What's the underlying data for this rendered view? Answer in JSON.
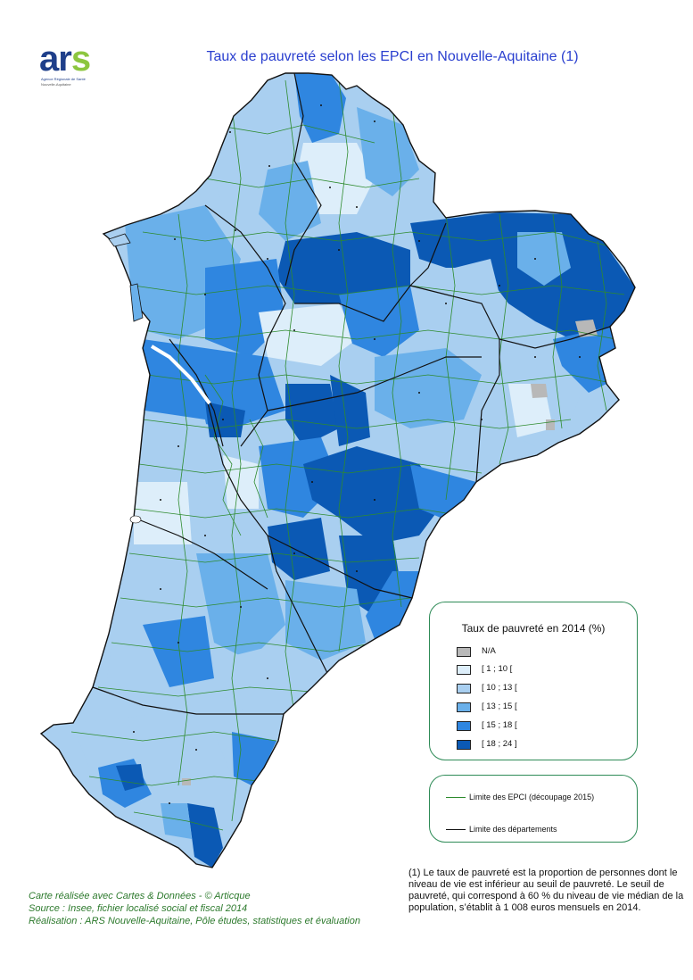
{
  "logo": {
    "letters": "ars",
    "line1": "Agence Régionale de Santé",
    "line2": "Nouvelle-Aquitaine"
  },
  "title": "Taux de pauvreté selon les EPCI en Nouvelle-Aquitaine (1)",
  "legend": {
    "title": "Taux de pauvreté en 2014 (%)",
    "items": [
      {
        "label": "N/A",
        "color": "#b8b8b8"
      },
      {
        "label": "[ 1 ; 10 [",
        "color": "#ddeefa"
      },
      {
        "label": "[ 10 ; 13 [",
        "color": "#a9cff0"
      },
      {
        "label": "[ 13 ; 15 [",
        "color": "#6ab0ea"
      },
      {
        "label": "[ 15 ; 18 [",
        "color": "#2f86e0"
      },
      {
        "label": "[ 18 ; 24 ]",
        "color": "#0b59b4"
      }
    ]
  },
  "limits": {
    "epci": {
      "label": "Limite des EPCI (découpage 2015)",
      "color": "#2e8b2e"
    },
    "departements": {
      "label": "Limite des départements",
      "color": "#111111"
    }
  },
  "note": "(1) Le taux de pauvreté est la proportion de personnes dont le niveau de vie est inférieur au seuil de pauvreté. Le seuil de pauvreté, qui correspond à 60 % du niveau de vie médian de la population, s’établit à 1 008 euros mensuels en 2014.",
  "credits": {
    "line1": "Carte réalisée avec Cartes & Données - © Articque",
    "line2": "Source : Insee, fichier localisé social et fiscal 2014",
    "line3": "Réalisation : ARS Nouvelle-Aquitaine, Pôle études, statistiques et évaluation"
  }
}
